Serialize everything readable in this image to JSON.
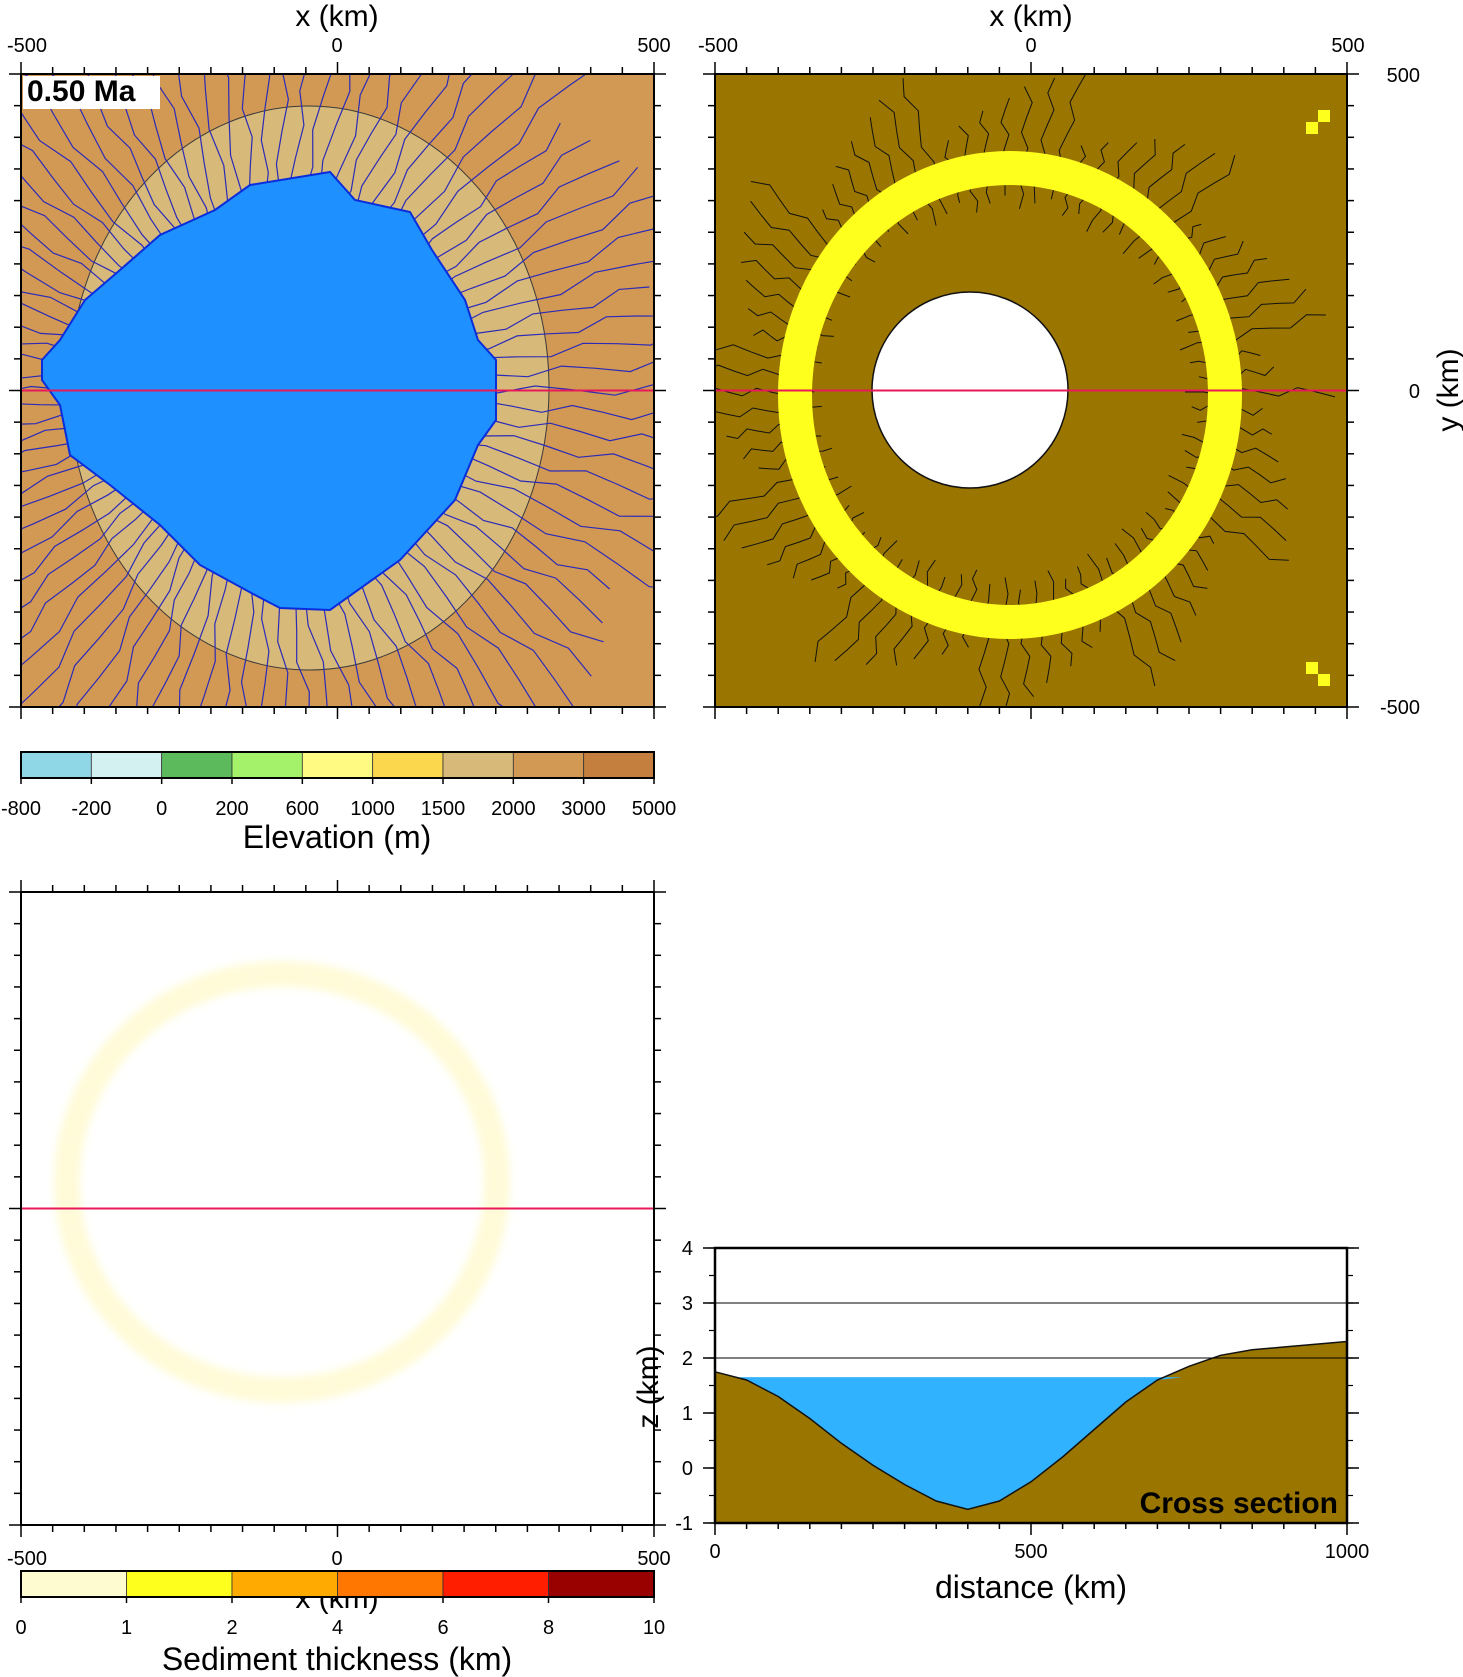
{
  "chart_data": [
    {
      "type": "heatmap",
      "id": "elevation-map",
      "time_label": "0.50 Ma",
      "xlabel": "x (km)",
      "xlim": [
        -500,
        500
      ],
      "ylim": [
        -500,
        500
      ],
      "x_ticks": [
        "-500",
        "0",
        "500"
      ],
      "cross_section_y": 0,
      "lake": {
        "center": [
          -80,
          30
        ],
        "rx": 230,
        "ry": 335,
        "color": "#1e90ff",
        "shoreline_color": "#0a2ddc"
      },
      "sediment_ring": {
        "center": [
          -45,
          10
        ],
        "rx": 380,
        "ry": 445,
        "color": "#d7b97a"
      },
      "background_color": "#d29954",
      "drainage_color": "#2b2bb8",
      "profile_color": "#e8195a"
    },
    {
      "type": "heatmap",
      "id": "erosion-map",
      "xlabel": "x (km)",
      "ylabel": "y (km)",
      "xlim": [
        -500,
        500
      ],
      "ylim": [
        -500,
        500
      ],
      "x_ticks": [
        "-500",
        "0",
        "500"
      ],
      "y_ticks": [
        "500",
        "0",
        "-500"
      ],
      "cross_section_y": 0,
      "background_color": "#9a7600",
      "ring": {
        "center": [
          -30,
          -10
        ],
        "rx": 350,
        "ry": 365,
        "color": "#ffff1e"
      },
      "hole": {
        "center": [
          -100,
          25
        ],
        "r": 150,
        "color": "#ffffff"
      },
      "profile_color": "#e8195a"
    },
    {
      "type": "heatmap",
      "id": "sediment-map",
      "x_ticks": [
        "-500",
        "0",
        "500"
      ],
      "xlabel": "x (km)",
      "cross_section_y": 0,
      "ring": {
        "center": [
          -50,
          10
        ],
        "rx": 345,
        "ry": 345,
        "color": "#fffbd8"
      },
      "profile_color": "#e8195a"
    },
    {
      "type": "area",
      "id": "cross-section",
      "title": "Cross section",
      "xlabel": "distance (km)",
      "ylabel": "z (km)",
      "xlim": [
        0,
        1000
      ],
      "ylim": [
        -1,
        4
      ],
      "x_ticks": [
        0,
        500,
        1000
      ],
      "y_ticks": [
        -1,
        0,
        1,
        2,
        3,
        4
      ],
      "reference_lines": [
        2,
        3
      ],
      "water_level": 1.65,
      "ground_color": "#9a7600",
      "water_color": "#31b2ff",
      "topography": {
        "x": [
          0,
          50,
          100,
          150,
          200,
          250,
          300,
          350,
          400,
          450,
          500,
          550,
          600,
          650,
          700,
          750,
          800,
          850,
          900,
          950,
          1000
        ],
        "z": [
          1.75,
          1.6,
          1.3,
          0.9,
          0.45,
          0.05,
          -0.3,
          -0.6,
          -0.75,
          -0.6,
          -0.25,
          0.2,
          0.7,
          1.2,
          1.6,
          1.85,
          2.05,
          2.15,
          2.2,
          2.25,
          2.3
        ]
      }
    }
  ],
  "colorbars": [
    {
      "id": "elevation-colorbar",
      "label": "Elevation (m)",
      "tick_labels": [
        "-800",
        "-200",
        "0",
        "200",
        "600",
        "1000",
        "1500",
        "2000",
        "3000",
        "5000"
      ],
      "colors": [
        "#8fd6e6",
        "#d4f1f1",
        "#5cba5c",
        "#a4f26a",
        "#fffb82",
        "#fbd74e",
        "#d7b97a",
        "#d29954",
        "#c47f3e"
      ]
    },
    {
      "id": "sediment-colorbar",
      "label": "Sediment thickness (km)",
      "tick_labels": [
        "0",
        "1",
        "2",
        "4",
        "6",
        "8",
        "10"
      ],
      "colors": [
        "#fffbd0",
        "#ffff1e",
        "#ffaa00",
        "#ff7700",
        "#ff1e00",
        "#990000"
      ]
    }
  ]
}
